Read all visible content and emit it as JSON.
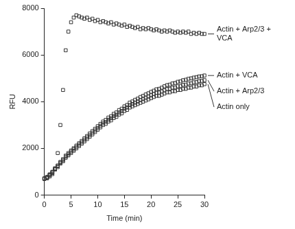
{
  "chart_data": {
    "type": "scatter",
    "x_label": "Time (min)",
    "y_label": "RFU",
    "xlim": [
      0,
      30
    ],
    "xticks": [
      0,
      5,
      10,
      15,
      20,
      25,
      30
    ],
    "ylim": [
      0,
      8000
    ],
    "yticks": [
      0,
      2000,
      4000,
      6000,
      8000
    ],
    "grid": false,
    "marker": "square",
    "x": [
      0,
      0.5,
      1,
      1.5,
      2,
      2.5,
      3,
      3.5,
      4,
      4.5,
      5,
      5.5,
      6,
      6.5,
      7,
      7.5,
      8,
      8.5,
      9,
      9.5,
      10,
      10.5,
      11,
      11.5,
      12,
      12.5,
      13,
      13.5,
      14,
      14.5,
      15,
      15.5,
      16,
      16.5,
      17,
      17.5,
      18,
      18.5,
      19,
      19.5,
      20,
      20.5,
      21,
      21.5,
      22,
      22.5,
      23,
      23.5,
      24,
      24.5,
      25,
      25.5,
      26,
      26.5,
      27,
      27.5,
      28,
      28.5,
      29,
      29.5,
      30
    ],
    "series": [
      {
        "name": "Actin + Arp2/3 + VCA",
        "color": "#333333",
        "values": [
          700,
          720,
          800,
          900,
          1100,
          1800,
          3000,
          4500,
          6200,
          7000,
          7400,
          7600,
          7700,
          7650,
          7600,
          7550,
          7600,
          7500,
          7550,
          7450,
          7500,
          7400,
          7450,
          7400,
          7350,
          7400,
          7300,
          7350,
          7300,
          7250,
          7300,
          7200,
          7250,
          7200,
          7150,
          7200,
          7100,
          7150,
          7100,
          7150,
          7100,
          7050,
          7100,
          7050,
          7000,
          7050,
          7000,
          7050,
          7000,
          6950,
          7000,
          6950,
          7000,
          6950,
          7000,
          6900,
          6950,
          6900,
          6950,
          6900,
          6900
        ]
      },
      {
        "name": "Actin + VCA",
        "color": "#333333",
        "values": [
          720,
          780,
          890,
          1000,
          1150,
          1270,
          1420,
          1540,
          1690,
          1800,
          1910,
          2010,
          2120,
          2220,
          2320,
          2430,
          2530,
          2640,
          2740,
          2840,
          2950,
          3050,
          3150,
          3220,
          3320,
          3380,
          3480,
          3540,
          3640,
          3700,
          3800,
          3860,
          3960,
          4010,
          4080,
          4130,
          4200,
          4250,
          4310,
          4360,
          4420,
          4470,
          4530,
          4550,
          4600,
          4660,
          4710,
          4730,
          4780,
          4800,
          4850,
          4870,
          4920,
          4940,
          4980,
          5000,
          5030,
          5050,
          5080,
          5090,
          5120
        ]
      },
      {
        "name": "Actin + Arp2/3",
        "color": "#333333",
        "values": [
          700,
          760,
          870,
          980,
          1130,
          1240,
          1390,
          1500,
          1650,
          1750,
          1860,
          1960,
          2060,
          2160,
          2260,
          2370,
          2470,
          2570,
          2670,
          2770,
          2870,
          2970,
          3070,
          3130,
          3230,
          3290,
          3390,
          3440,
          3540,
          3600,
          3700,
          3750,
          3850,
          3900,
          3960,
          4010,
          4070,
          4120,
          4170,
          4220,
          4280,
          4330,
          4380,
          4390,
          4440,
          4490,
          4540,
          4550,
          4600,
          4610,
          4660,
          4670,
          4720,
          4730,
          4780,
          4790,
          4830,
          4840,
          4880,
          4890,
          4920
        ]
      },
      {
        "name": "Actin only",
        "color": "#333333",
        "values": [
          700,
          750,
          850,
          950,
          1100,
          1200,
          1350,
          1450,
          1600,
          1700,
          1800,
          1900,
          2000,
          2100,
          2200,
          2300,
          2400,
          2500,
          2600,
          2700,
          2800,
          2900,
          3000,
          3050,
          3150,
          3200,
          3300,
          3350,
          3450,
          3500,
          3600,
          3650,
          3750,
          3800,
          3850,
          3900,
          3950,
          4000,
          4050,
          4100,
          4150,
          4200,
          4250,
          4250,
          4300,
          4350,
          4400,
          4400,
          4450,
          4450,
          4500,
          4500,
          4550,
          4550,
          4600,
          4600,
          4650,
          4650,
          4700,
          4700,
          4750
        ]
      }
    ]
  }
}
